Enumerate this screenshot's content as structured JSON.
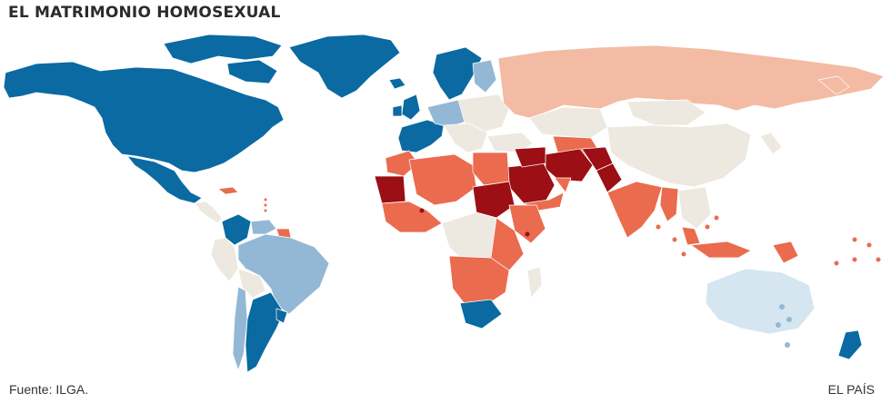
{
  "title": "EL MATRIMONIO HOMOSEXUAL",
  "source": "Fuente: ILGA.",
  "brand": "EL PAÍS",
  "colors": {
    "marriage": "#0a6aa1",
    "partial": "#93b8d6",
    "light_blue": "#d5e6f1",
    "neutral": "#ede9e0",
    "russia": "#f3bba3",
    "criminal": "#ea6b4e",
    "death": "#9b0f15"
  }
}
